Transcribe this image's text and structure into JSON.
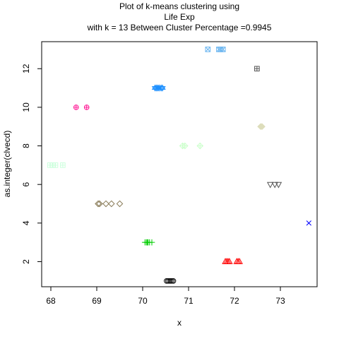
{
  "chart_data": {
    "type": "scatter",
    "title": [
      "Plot of k-means clustering using",
      "Life Exp",
      "with  k = 13 Between Cluster Percentage =0.9945"
    ],
    "xlabel": "x",
    "ylabel": "as.integer(clvecd)",
    "xlim": [
      67.8,
      73.8
    ],
    "ylim": [
      0.7,
      13.4
    ],
    "xticks": [
      68,
      69,
      70,
      71,
      72,
      73
    ],
    "yticks": [
      2,
      4,
      6,
      8,
      10,
      12
    ],
    "grid": false,
    "legend": "none",
    "series": [
      {
        "cluster": 1,
        "color": "#000000",
        "symbol": "circle",
        "y": 1,
        "x": [
          70.52,
          70.55,
          70.58,
          70.61,
          70.64,
          70.67
        ]
      },
      {
        "cluster": 2,
        "color": "#ff0000",
        "symbol": "triangle-up",
        "y": 2,
        "x": [
          71.8,
          71.83,
          71.86,
          71.89,
          72.05,
          72.08,
          72.11
        ]
      },
      {
        "cluster": 3,
        "color": "#00cd00",
        "symbol": "plus",
        "y": 3,
        "x": [
          70.05,
          70.08,
          70.1,
          70.12,
          70.15,
          70.2
        ]
      },
      {
        "cluster": 4,
        "color": "#0000ff",
        "symbol": "cross",
        "y": 4,
        "x": [
          73.62
        ]
      },
      {
        "cluster": 5,
        "color": "#8b7d5a",
        "symbol": "diamond",
        "y": 5,
        "x": [
          69.03,
          69.06,
          69.2,
          69.32,
          69.5
        ]
      },
      {
        "cluster": 6,
        "color": "#555555",
        "symbol": "triangle-down",
        "y": 6,
        "x": [
          72.78,
          72.88,
          72.96
        ]
      },
      {
        "cluster": 7,
        "color": "#ccffdd",
        "symbol": "square-plus",
        "y": 7,
        "x": [
          67.98,
          68.04,
          68.1,
          68.26
        ]
      },
      {
        "cluster": 8,
        "color": "#ccffcc",
        "symbol": "diamond-plus",
        "y": 8,
        "x": [
          70.87,
          70.92,
          71.25
        ]
      },
      {
        "cluster": 9,
        "color": "#ddddbb",
        "symbol": "diamond-filled",
        "y": 9,
        "x": [
          72.57,
          72.6
        ]
      },
      {
        "cluster": 10,
        "color": "#ff1493",
        "symbol": "circle-plus",
        "y": 10,
        "x": [
          68.55,
          68.78
        ]
      },
      {
        "cluster": 11,
        "color": "#1e90ff",
        "symbol": "star-of-david",
        "y": 11,
        "x": [
          70.27,
          70.3,
          70.33,
          70.36,
          70.4,
          70.43
        ]
      },
      {
        "cluster": 12,
        "color": "#555555",
        "symbol": "square-plus",
        "y": 12,
        "x": [
          72.49
        ]
      },
      {
        "cluster": 13,
        "color": "#6cb6f0",
        "symbol": "square-x",
        "y": 13,
        "x": [
          71.42,
          71.66,
          71.7,
          71.75
        ]
      }
    ]
  }
}
